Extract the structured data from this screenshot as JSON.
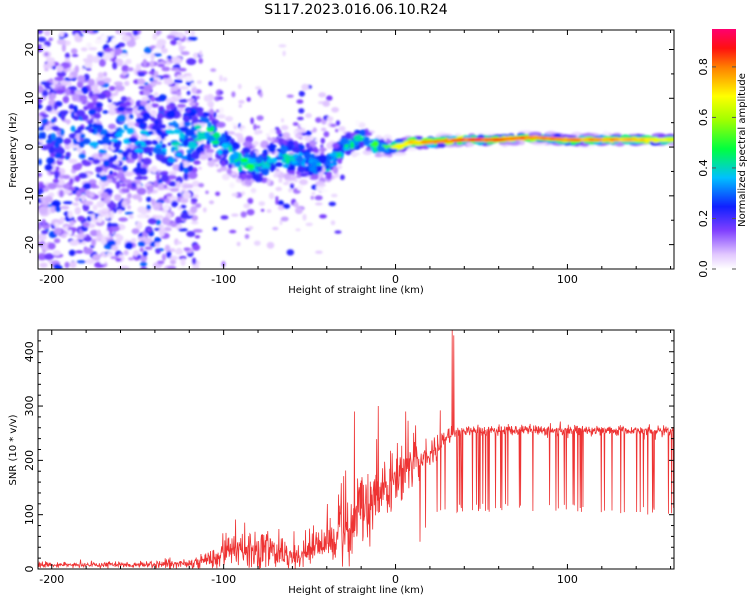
{
  "title": "S117.2023.016.06.10.R24",
  "colors": {
    "snr_line": "#ee3333",
    "axis": "#000000",
    "background": "#ffffff"
  },
  "chart_data": [
    {
      "type": "heatmap",
      "xlabel": "Height of straight line (km)",
      "ylabel": "Frequency (Hz)",
      "xlim": [
        -208,
        162
      ],
      "ylim": [
        -25,
        24
      ],
      "xticks": [
        -200,
        -100,
        0,
        100
      ],
      "yticks": [
        -20,
        -10,
        0,
        10,
        20
      ],
      "colorbar": {
        "label": "Normalized spectral amplitude",
        "range": [
          0,
          0.95
        ],
        "ticks": [
          "0.0",
          "0.2",
          "0.4",
          "0.6",
          "0.8"
        ],
        "tick_values": [
          0.0,
          0.2,
          0.4,
          0.6,
          0.8
        ]
      },
      "ridge": {
        "x": [
          -205,
          -150,
          -120,
          -110,
          -100,
          -90,
          -80,
          -70,
          -60,
          -50,
          -40,
          -30,
          -20,
          -10,
          0,
          10,
          20,
          40,
          60,
          80,
          100,
          120,
          140,
          162
        ],
        "frequency": [
          2,
          1.5,
          1,
          4,
          0,
          -3,
          -4,
          -2,
          -2,
          -3,
          -4,
          0,
          2,
          0,
          0,
          1,
          1,
          1.5,
          1.5,
          2,
          1.5,
          1.5,
          1.5,
          1.5
        ],
        "amplitude": [
          0.35,
          0.4,
          0.45,
          0.5,
          0.5,
          0.55,
          0.5,
          0.5,
          0.5,
          0.5,
          0.45,
          0.5,
          0.55,
          0.6,
          0.7,
          0.8,
          0.85,
          0.9,
          0.9,
          0.88,
          0.85,
          0.85,
          0.8,
          0.75
        ],
        "width": [
          18,
          16,
          12,
          6,
          6,
          5,
          5,
          5,
          5,
          5,
          4,
          3,
          2.5,
          2,
          1.5,
          1.2,
          1.2,
          1,
          1,
          1,
          1,
          1,
          1,
          1
        ]
      }
    },
    {
      "type": "line",
      "xlabel": "Height of straight line (km)",
      "ylabel": "SNR (10 * v/v)",
      "xlim": [
        -208,
        162
      ],
      "ylim": [
        0,
        440
      ],
      "xticks": [
        -200,
        -100,
        0,
        100
      ],
      "yticks": [
        0,
        100,
        200,
        300,
        400
      ],
      "envelope": {
        "x": [
          -208,
          -150,
          -120,
          -105,
          -95,
          -80,
          -70,
          -55,
          -45,
          -38,
          -30,
          -25,
          -20,
          -10,
          0,
          10,
          20,
          30,
          35,
          40,
          60,
          80,
          100,
          120,
          140,
          162
        ],
        "base": [
          8,
          8,
          10,
          20,
          30,
          35,
          30,
          25,
          40,
          55,
          75,
          90,
          110,
          135,
          165,
          190,
          215,
          240,
          252,
          255,
          255,
          255,
          255,
          255,
          255,
          255
        ],
        "noise": [
          5,
          5,
          8,
          15,
          30,
          30,
          25,
          20,
          25,
          30,
          45,
          60,
          55,
          50,
          45,
          35,
          25,
          15,
          10,
          8,
          8,
          8,
          8,
          8,
          8,
          8
        ],
        "dip_floor": [
          0,
          0,
          0,
          0,
          0,
          0,
          0,
          0,
          0,
          0,
          0,
          0,
          0,
          0,
          0,
          0,
          90,
          105,
          105,
          105,
          105,
          105,
          105,
          100,
          100,
          100
        ]
      },
      "spikes": [
        {
          "x": -24,
          "y": 290
        },
        {
          "x": -10,
          "y": 300
        },
        {
          "x": 6,
          "y": 290
        },
        {
          "x": 26,
          "y": 292
        },
        {
          "x": 33,
          "y": 440
        },
        {
          "x": 34,
          "y": 430
        }
      ]
    }
  ]
}
